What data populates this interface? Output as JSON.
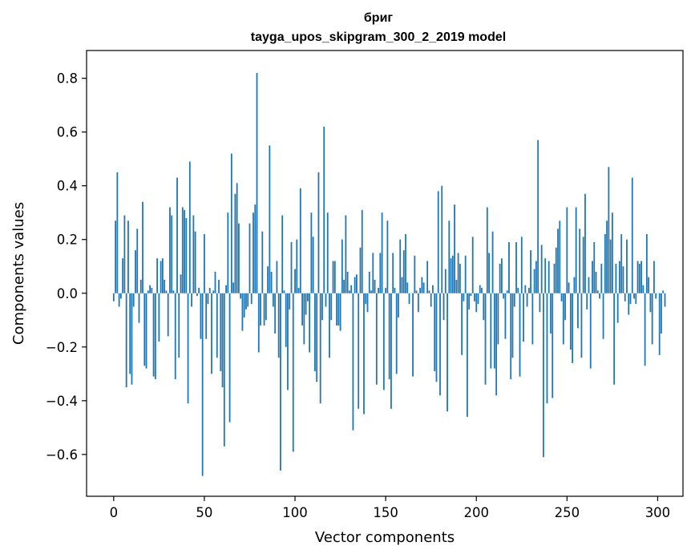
{
  "chart_data": {
    "type": "bar",
    "title": "бриг",
    "subtitle": "tayga_upos_skipgram_300_2_2019 model",
    "xlabel": "Vector components",
    "ylabel": "Components values",
    "xlim": [
      -14.95,
      313.95
    ],
    "ylim": [
      -0.7556,
      0.9034
    ],
    "x_ticks": [
      0,
      50,
      100,
      150,
      200,
      250,
      300
    ],
    "x_tick_labels": [
      "0",
      "50",
      "100",
      "150",
      "200",
      "250",
      "300"
    ],
    "y_ticks": [
      -0.6,
      -0.4,
      -0.2,
      0.0,
      0.2,
      0.4,
      0.6,
      0.8
    ],
    "y_tick_labels": [
      "−0.6",
      "−0.4",
      "−0.2",
      "0.0",
      "0.2",
      "0.4",
      "0.6",
      "0.8"
    ],
    "bar_color": "#1f77b4",
    "grid": false,
    "series": [
      {
        "name": "бриг",
        "values": [
          -0.03,
          0.27,
          0.45,
          -0.05,
          -0.02,
          0.13,
          0.29,
          -0.35,
          0.27,
          -0.3,
          -0.34,
          -0.05,
          0.16,
          0.24,
          -0.11,
          0.05,
          0.34,
          -0.27,
          -0.28,
          0.01,
          0.03,
          0.02,
          -0.31,
          -0.32,
          0.13,
          -0.18,
          0.12,
          0.13,
          0.05,
          0.01,
          -0.16,
          0.32,
          0.29,
          0.01,
          -0.32,
          0.43,
          -0.24,
          0.07,
          0.32,
          0.31,
          0.28,
          -0.41,
          0.49,
          -0.05,
          0.29,
          0.23,
          -0.01,
          0.02,
          -0.17,
          -0.68,
          0.22,
          -0.17,
          -0.04,
          0.02,
          -0.3,
          0.01,
          0.08,
          -0.24,
          0.05,
          -0.29,
          -0.35,
          -0.57,
          0.03,
          0.3,
          -0.48,
          0.52,
          0.04,
          0.37,
          0.41,
          0.26,
          -0.02,
          -0.14,
          -0.09,
          -0.06,
          -0.05,
          0.26,
          -0.04,
          0.3,
          0.33,
          0.82,
          -0.22,
          -0.12,
          0.23,
          -0.12,
          -0.1,
          0.1,
          0.55,
          0.08,
          -0.05,
          -0.15,
          0.12,
          -0.24,
          -0.66,
          0.29,
          0.01,
          -0.2,
          -0.36,
          -0.06,
          0.19,
          -0.59,
          0.09,
          0.2,
          0.02,
          0.39,
          -0.12,
          -0.19,
          -0.08,
          -0.03,
          -0.22,
          0.3,
          0.21,
          -0.29,
          -0.33,
          0.45,
          -0.41,
          -0.1,
          0.62,
          -0.05,
          0.3,
          -0.24,
          -0.1,
          0.12,
          0.12,
          -0.12,
          -0.12,
          -0.14,
          0.2,
          0.05,
          0.29,
          0.08,
          0.01,
          0.03,
          -0.51,
          0.06,
          0.07,
          -0.43,
          0.17,
          0.31,
          -0.45,
          -0.04,
          -0.07,
          0.08,
          0.01,
          0.15,
          0.05,
          -0.34,
          0.02,
          0.15,
          0.3,
          -0.36,
          0.02,
          0.27,
          -0.32,
          -0.43,
          0.15,
          0.02,
          -0.3,
          -0.09,
          0.2,
          0.06,
          0.16,
          0.22,
          0.04,
          -0.04,
          0.0,
          -0.31,
          0.14,
          0.01,
          -0.07,
          0.02,
          0.06,
          0.04,
          0.0,
          0.12,
          0.01,
          -0.05,
          0.03,
          -0.29,
          -0.33,
          0.38,
          -0.38,
          0.4,
          -0.1,
          0.09,
          -0.44,
          0.27,
          0.13,
          0.14,
          0.33,
          0.05,
          0.15,
          0.11,
          -0.23,
          -0.03,
          0.14,
          -0.46,
          -0.06,
          -0.01,
          0.21,
          -0.03,
          -0.07,
          -0.04,
          0.03,
          0.02,
          -0.1,
          -0.34,
          0.32,
          0.15,
          -0.28,
          0.23,
          -0.28,
          -0.38,
          -0.19,
          0.11,
          0.13,
          -0.02,
          -0.17,
          0.01,
          0.19,
          -0.32,
          -0.24,
          -0.05,
          0.19,
          0.02,
          -0.31,
          0.21,
          -0.18,
          0.03,
          -0.05,
          0.02,
          0.16,
          -0.19,
          0.09,
          0.12,
          0.57,
          -0.07,
          0.18,
          -0.61,
          0.13,
          -0.41,
          0.12,
          -0.15,
          -0.39,
          0.11,
          0.17,
          0.24,
          0.27,
          -0.03,
          -0.19,
          -0.1,
          0.32,
          0.04,
          -0.21,
          -0.26,
          0.06,
          0.32,
          -0.13,
          0.24,
          -0.24,
          0.21,
          0.37,
          -0.06,
          0.06,
          -0.28,
          0.12,
          0.19,
          0.08,
          0.01,
          -0.02,
          0.11,
          -0.17,
          0.22,
          0.27,
          0.47,
          0.2,
          0.3,
          -0.34,
          0.11,
          -0.11,
          0.12,
          0.22,
          0.1,
          -0.03,
          0.2,
          -0.08,
          -0.04,
          0.43,
          -0.02,
          -0.04,
          0.12,
          0.11,
          0.12,
          0.03,
          -0.27,
          0.22,
          0.06,
          -0.07,
          -0.19,
          0.12,
          -0.02,
          0.0,
          -0.23,
          -0.15,
          0.01,
          -0.05
        ]
      }
    ]
  }
}
